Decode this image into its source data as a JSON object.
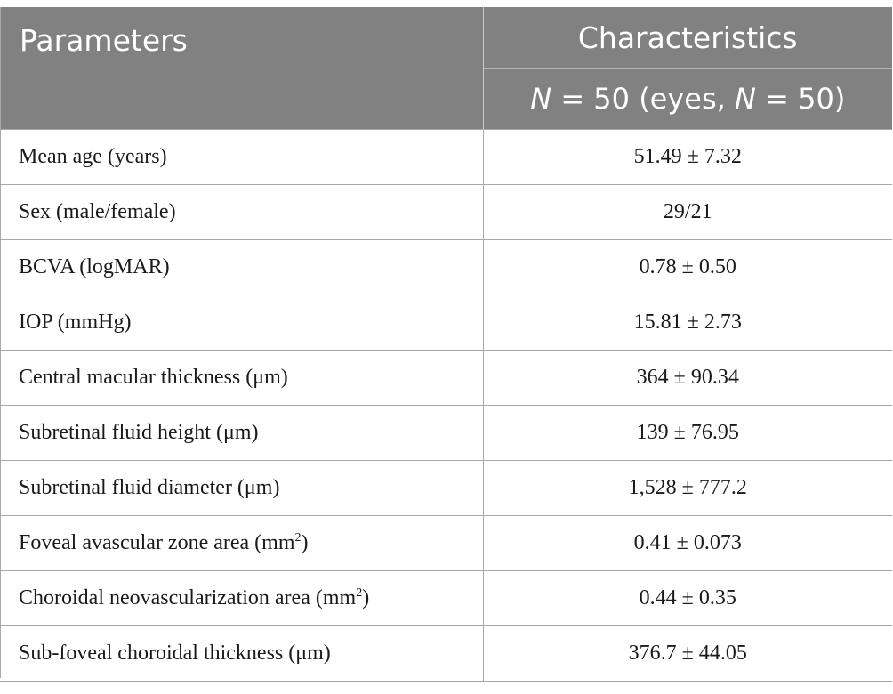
{
  "header": {
    "param_label": "Parameters",
    "char_label": "Characteristics",
    "n_line": {
      "n1_italic": "N",
      "n1_rest": " = 50 (eyes, ",
      "n2_italic": "N",
      "n2_rest": " = 50)"
    }
  },
  "rows": [
    {
      "label": "Mean age (years)",
      "value": "51.49 ± 7.32"
    },
    {
      "label": "Sex (male/female)",
      "value": "29/21"
    },
    {
      "label": "BCVA (logMAR)",
      "value": "0.78 ± 0.50"
    },
    {
      "label": "IOP (mmHg)",
      "value": "15.81 ± 2.73"
    },
    {
      "label": "Central macular thickness (μm)",
      "value": "364 ± 90.34"
    },
    {
      "label": "Subretinal fluid height (μm)",
      "value": "139 ± 76.95"
    },
    {
      "label": "Subretinal fluid diameter (μm)",
      "value": "1,528 ± 777.2"
    },
    {
      "label": "Foveal avascular zone area (mm",
      "sup": "2",
      "label_end": ")",
      "value": "0.41 ± 0.073"
    },
    {
      "label": "Choroidal neovascularization area (mm",
      "sup": "2",
      "label_end": ")",
      "value": "0.44 ± 0.35"
    },
    {
      "label": "Sub-foveal choroidal thickness (μm)",
      "value": "376.7 ± 44.05"
    }
  ],
  "colors": {
    "header_bg": "#818181",
    "header_text": "#ffffff",
    "rule": "#a8a8a8"
  }
}
